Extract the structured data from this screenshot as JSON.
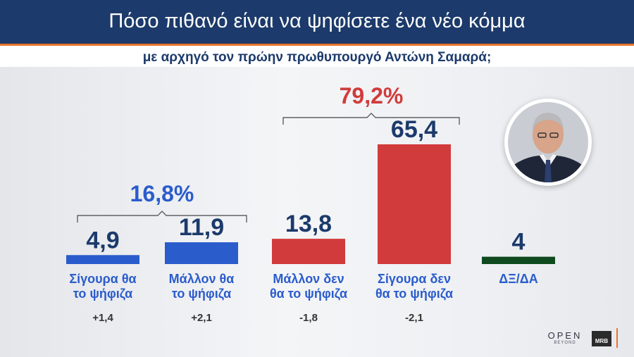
{
  "header": {
    "title": "Πόσο πιθανό είναι να ψηφίσετε ένα νέο κόμμα",
    "subtitle": "με αρχηγό τον πρώην πρωθυπουργό Αντώνη Σαμαρά;"
  },
  "chart_data": {
    "type": "bar",
    "categories": [
      [
        "Σίγουρα θα",
        "το ψήφιζα"
      ],
      [
        "Μάλλον θα",
        "το ψήφιζα"
      ],
      [
        "Μάλλον δεν",
        "θα το ψήφιζα"
      ],
      [
        "Σίγουρα δεν",
        "θα το ψήφιζα"
      ],
      [
        "ΔΞ/ΔΑ"
      ]
    ],
    "values": [
      4.9,
      11.9,
      13.8,
      65.4,
      4
    ],
    "value_labels": [
      "4,9",
      "11,9",
      "13,8",
      "65,4",
      "4"
    ],
    "changes": [
      "+1,4",
      "+2,1",
      "-1,8",
      "-2,1",
      ""
    ],
    "colors": [
      "#2a5ccc",
      "#2a5ccc",
      "#d13b3b",
      "#d13b3b",
      "#0e4a1e"
    ],
    "groups": [
      {
        "label": "16,8%",
        "from": 0,
        "to": 1,
        "color": "#2a5ccc"
      },
      {
        "label": "79,2%",
        "from": 2,
        "to": 3,
        "color": "#d13b3b"
      }
    ],
    "ylim": [
      0,
      100
    ],
    "grid": false,
    "legend": "none"
  },
  "icons": {
    "portrait": "person-portrait-icon",
    "brand_open": "open-beyond-logo",
    "brand_mrb": "mrb-logo"
  },
  "logos": {
    "open": "OPEN",
    "beyond": "BEYOND",
    "mrb": "MRB"
  },
  "colors": {
    "header_bg": "#1c3a6b",
    "accent_orange": "#e8742a",
    "positive_blue": "#2a5ccc",
    "negative_red": "#d13b3b",
    "neutral_green": "#0e4a1e"
  }
}
